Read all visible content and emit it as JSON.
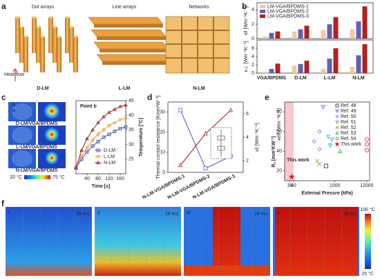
{
  "panel_labels": [
    "a",
    "b",
    "c",
    "d",
    "e",
    "f"
  ],
  "panel_a": {
    "titles": [
      "Dot arrays",
      "Line arrays",
      "Networks"
    ],
    "labels": [
      "D-LM",
      "L-LM",
      "N-LM"
    ],
    "heat_flow": "Heat flow"
  },
  "panel_c_images": {
    "labels": [
      "D-LM/VGA/BPDMS",
      "L-LM/VGA/BPDMS",
      "N-LM/VGA/BPDMS"
    ],
    "points": [
      "b",
      "a"
    ],
    "scale": [
      "20 °C",
      "75 °C"
    ]
  },
  "panel_f": {
    "labels": [
      "I",
      "II",
      "III",
      "IV"
    ],
    "times": [
      "18 ms",
      "18 ms",
      "18 ms",
      "18 ms"
    ],
    "scale": [
      "100 °C",
      "25 °C"
    ]
  },
  "chart_data": [
    {
      "type": "bar",
      "ylabel": "κ‖ [Wm⁻¹K⁻¹]",
      "categories": [
        null,
        null,
        null,
        null
      ],
      "series": [
        {
          "name": "LM-VGA/BPDMS-1",
          "color": "#f3c9a4",
          "values": [
            0.3,
            1.0,
            1.2,
            1.3
          ]
        },
        {
          "name": "LM-VGA/BPDMS-2",
          "color": "#5e62ad",
          "values": [
            0.8,
            1.3,
            2.0,
            2.4
          ]
        },
        {
          "name": "LM-VGA/BPDMS-3",
          "color": "#b3201f",
          "values": [
            1.0,
            1.8,
            3.0,
            4.5
          ]
        }
      ],
      "ylim": [
        0,
        5
      ],
      "yticks": [
        0,
        2,
        4
      ]
    },
    {
      "type": "bar",
      "ylabel": "κ⊥ [Wm⁻¹K⁻¹]",
      "categories": [
        "VGA/BPDMS",
        "D-LM",
        "L-LM",
        "N-LM"
      ],
      "series": [
        {
          "color": "#f3c9a4",
          "values": [
            0.3,
            1.8,
            1.0,
            1.5
          ]
        },
        {
          "color": "#5e62ad",
          "values": [
            1.0,
            2.2,
            3.5,
            4.3
          ]
        },
        {
          "color": "#b3201f",
          "values": [
            2.3,
            3.0,
            6.0,
            7.0
          ]
        }
      ],
      "ylim": [
        0,
        8
      ],
      "yticks": [
        0,
        2,
        4,
        6
      ]
    },
    {
      "type": "line",
      "title": "Point b",
      "xlabel": "Time [s]",
      "ylabel": "Temperature [°C]",
      "x": [
        0,
        20,
        40,
        60,
        80,
        100,
        120,
        140,
        160,
        180
      ],
      "series": [
        {
          "name": "D-LM",
          "color": "#4a56b0",
          "marker": "square",
          "values": [
            22,
            25,
            27.5,
            29.5,
            31,
            32.5,
            33.5,
            34.5,
            35.5,
            36
          ]
        },
        {
          "name": "L-LM",
          "color": "#e39b2d",
          "marker": "circle",
          "values": [
            22,
            26,
            29,
            31.5,
            33.5,
            35,
            36.5,
            37.5,
            38.5,
            39
          ]
        },
        {
          "name": "N-LM",
          "color": "#9c1f1f",
          "marker": "triangle",
          "values": [
            22,
            28,
            32,
            35,
            37.5,
            39.5,
            41,
            42,
            43,
            43.5
          ]
        }
      ],
      "xlim": [
        0,
        180
      ],
      "xticks": [
        40,
        80,
        120,
        160
      ],
      "ylim": [
        20,
        45
      ],
      "yticks": [
        25,
        30,
        35,
        40,
        45
      ]
    },
    {
      "type": "dual",
      "categories": [
        "N-LM-VGA/BPDMS-1",
        "N-LM-VGA/BPDMS-2",
        "N-LM-VGA/BPDMS-3"
      ],
      "ylabel": "Thermal contact resistance [Kmm²W⁻¹]",
      "y2label": "κ‖ [Wm⁻¹K⁻¹]",
      "series": [
        {
          "color": "#6b6fc0",
          "marker": "square",
          "values": [
            31,
            2,
            8
          ]
        },
        {
          "color": "#b0302c",
          "marker": "triangle",
          "axis": "y2",
          "values": [
            1.6,
            4.3,
            6.3
          ]
        }
      ],
      "ylim": [
        0,
        35
      ],
      "yticks": [
        0,
        10,
        20,
        30
      ],
      "y2lim": [
        1,
        7
      ],
      "y2ticks": [
        2,
        4,
        6
      ]
    },
    {
      "type": "scatter",
      "xlabel": "External Pressre (kPa)",
      "ylabel": "R꜀ [mm²KW⁻¹]",
      "ylabel2": "κeff (Wm⁻¹K⁻¹)",
      "log_x": true,
      "xlim": [
        20,
        15000
      ],
      "xticks": [
        30,
        40,
        1000,
        12000
      ],
      "ylim": [
        10,
        90
      ],
      "yticks": [
        20,
        40,
        60,
        80
      ],
      "shade": [
        20,
        40
      ],
      "annotation": "This work",
      "series": [
        {
          "name": "Ref. 48",
          "color": "#333333",
          "marker": "square",
          "x": [
            500
          ],
          "values": [
            25
          ]
        },
        {
          "name": "Ref. 49",
          "color": "#4a72c8",
          "marker": "tridown",
          "x": [
            400
          ],
          "values": [
            85
          ]
        },
        {
          "name": "Ref. 50",
          "color": "#b07ad0",
          "marker": "diamond",
          "x": [
            200,
            300,
            300
          ],
          "values": [
            50,
            42,
            60
          ]
        },
        {
          "name": "Ref. 51",
          "color": "#34b6c8",
          "marker": "tridown",
          "x": [
            600,
            800,
            700
          ],
          "values": [
            55,
            52,
            46
          ]
        },
        {
          "name": "Ref. 52",
          "color": "#b09a40",
          "marker": "cross",
          "x": [
            250,
            300
          ],
          "values": [
            30,
            27
          ]
        },
        {
          "name": "Ref. 53",
          "color": "#3aa86a",
          "marker": "triangle",
          "x": [
            1500
          ],
          "values": [
            40
          ]
        },
        {
          "name": "Ref. 54",
          "color": "#d04040",
          "marker": "circle",
          "x": [
            12000,
            12000,
            12000
          ],
          "values": [
            52,
            47,
            41
          ]
        },
        {
          "name": "This work",
          "color": "#d01818",
          "marker": "star",
          "x": [
            35
          ],
          "values": [
            14
          ]
        }
      ]
    }
  ]
}
